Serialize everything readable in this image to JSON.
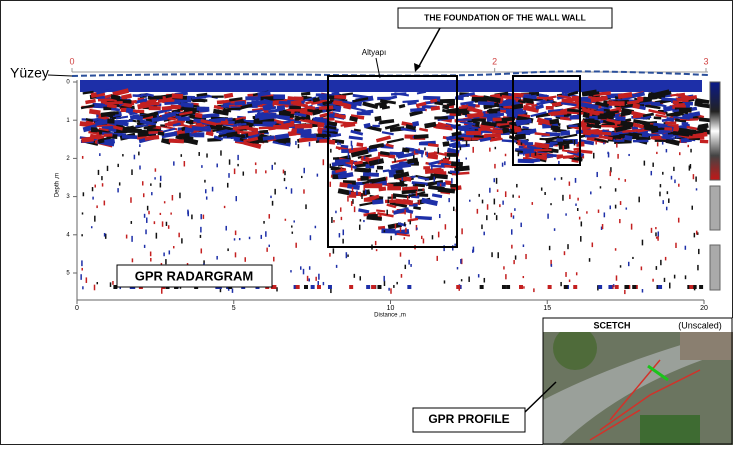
{
  "callout": "THE FOUNDATION OF THE WALL WALL",
  "surface_label": "Yüzey",
  "feature_label": "Altyapı",
  "radargram_label": "GPR RADARGRAM",
  "profile_label": "GPR PROFILE",
  "inset": {
    "title": "SCETCH",
    "note": "(Unscaled)"
  },
  "top_ruler": {
    "ticks": [
      {
        "value": 0,
        "label": "0"
      },
      {
        "value": 2,
        "label": "2"
      },
      {
        "value": 3,
        "label": "3"
      }
    ]
  },
  "depth_axis": {
    "title": "Depth ,m",
    "ticks": [
      0,
      1,
      2,
      3,
      4,
      5
    ]
  },
  "distance_axis": {
    "title": "Distance ,m",
    "ticks": [
      0,
      5,
      10,
      15,
      20
    ]
  }
}
